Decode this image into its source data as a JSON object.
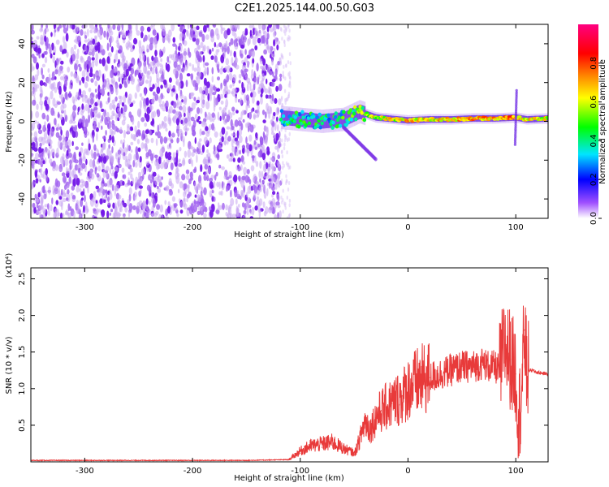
{
  "title": "C2E1.2025.144.00.50.G03",
  "chart_data": [
    {
      "type": "heatmap",
      "xlabel": "Height of straight line (km)",
      "ylabel": "Frequency (Hz)",
      "xlim": [
        -350,
        130
      ],
      "ylim": [
        -50,
        50
      ],
      "xticks": [
        -300,
        -200,
        -100,
        0,
        100
      ],
      "xtick_labels": [
        "-300",
        "-200",
        "-100",
        "0",
        "100"
      ],
      "yticks": [
        -40,
        -20,
        0,
        20,
        40
      ],
      "ytick_labels": [
        "-40",
        "-20",
        "0",
        "20",
        "40"
      ],
      "colorbar": {
        "label": "Normalized spectral amplitude",
        "range": [
          0,
          1
        ],
        "ticks": [
          0.0,
          0.2,
          0.4,
          0.6,
          0.8
        ],
        "tick_labels": [
          "0.0",
          "0.2",
          "0.4",
          "0.6",
          "0.8"
        ],
        "colors": [
          "#ffffff",
          "#8a2be2",
          "#0000ff",
          "#00e5ff",
          "#00ff00",
          "#ffff00",
          "#ff8000",
          "#ff0000",
          "#ff0080"
        ]
      },
      "regions": [
        {
          "x_range": [
            -350,
            -118
          ],
          "description_level": 0.15,
          "freq_range": [
            -50,
            50
          ],
          "pattern": "speckle"
        },
        {
          "x_range": [
            -118,
            -40
          ],
          "center_freq": 2,
          "amplitude": 0.4,
          "pattern": "cluster"
        },
        {
          "x_range": [
            -40,
            130
          ],
          "center_freq": 1.5,
          "amplitude": 0.7,
          "pattern": "line"
        }
      ],
      "line_track": {
        "x": [
          -118,
          -100,
          -80,
          -60,
          -45,
          -30,
          -10,
          0,
          20,
          40,
          60,
          80,
          100,
          110,
          130
        ],
        "freq": [
          2,
          1,
          0,
          1,
          5,
          2,
          1,
          0.5,
          1,
          1,
          1.5,
          1.5,
          2,
          1,
          1.5
        ],
        "amplitude": [
          0.35,
          0.3,
          0.3,
          0.35,
          0.45,
          0.55,
          0.6,
          0.65,
          0.6,
          0.65,
          0.7,
          0.7,
          0.75,
          0.6,
          0.6
        ]
      }
    },
    {
      "type": "line",
      "xlabel": "Height of straight line (km)",
      "ylabel": "SNR (10 * v/v)",
      "scale_label": "(x10⁴)",
      "xlim": [
        -350,
        130
      ],
      "ylim": [
        0,
        2.65
      ],
      "xticks": [
        -300,
        -200,
        -100,
        0,
        100
      ],
      "xtick_labels": [
        "-300",
        "-200",
        "-100",
        "0",
        "100"
      ],
      "yticks": [
        0.5,
        1.0,
        1.5,
        2.0,
        2.5
      ],
      "ytick_labels": [
        "0.5",
        "1.0",
        "1.5",
        "2.0",
        "2.5"
      ],
      "series": [
        {
          "color": "#e83a3a",
          "x": [
            -350,
            -300,
            -250,
            -200,
            -150,
            -110,
            -100,
            -90,
            -80,
            -70,
            -60,
            -50,
            -45,
            -40,
            -35,
            -30,
            -25,
            -20,
            -15,
            -10,
            -5,
            0,
            5,
            10,
            20,
            30,
            40,
            50,
            60,
            70,
            75,
            80,
            85,
            90,
            95,
            100,
            103,
            106,
            108,
            110,
            115,
            120,
            130
          ],
          "y": [
            0.02,
            0.02,
            0.02,
            0.02,
            0.02,
            0.03,
            0.12,
            0.18,
            0.2,
            0.22,
            0.15,
            0.1,
            0.3,
            0.55,
            0.45,
            0.6,
            0.7,
            0.75,
            0.8,
            0.85,
            0.9,
            1.0,
            1.05,
            1.1,
            1.15,
            1.2,
            1.25,
            1.3,
            1.3,
            1.35,
            1.3,
            1.3,
            1.25,
            1.6,
            1.4,
            1.2,
            0.6,
            1.1,
            1.8,
            1.25,
            1.25,
            1.22,
            1.2
          ]
        }
      ]
    }
  ]
}
